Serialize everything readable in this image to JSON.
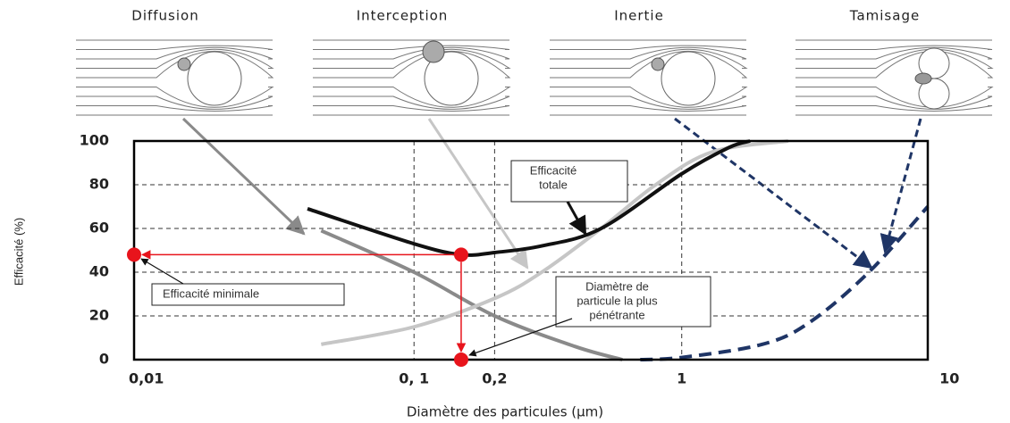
{
  "mechanisms": [
    "Diffusion",
    "Interception",
    "Inertie",
    "Tamisage"
  ],
  "chart_data": {
    "type": "line",
    "xscale": "log",
    "xlabel": "Diamètre des particules (µm)",
    "ylabel": "Efficacité (%)",
    "xlim": [
      0.009,
      8.3
    ],
    "ylim": [
      0,
      100
    ],
    "xticks": [
      {
        "value": 0.01,
        "label": "0,01"
      },
      {
        "value": 0.1,
        "label": "0, 1"
      },
      {
        "value": 0.2,
        "label": "0,2"
      },
      1,
      10
    ],
    "yticks": [
      0,
      20,
      40,
      60,
      80,
      100
    ],
    "grid": true,
    "series": [
      {
        "color": "#8a8a8a",
        "dashed": false,
        "x": [
          0.045,
          0.1,
          0.2,
          0.4,
          0.6
        ],
        "values": [
          59,
          40,
          20,
          6,
          0
        ]
      },
      {
        "color": "#c6c6c6",
        "dashed": false,
        "x": [
          0.045,
          0.1,
          0.2,
          0.3,
          0.5,
          0.8,
          1.3,
          2.5
        ],
        "values": [
          7,
          15,
          28,
          40,
          60,
          80,
          95,
          100
        ]
      },
      {
        "color": "#111111",
        "dashed": false,
        "x": [
          0.04,
          0.1,
          0.15,
          0.2,
          0.3,
          0.5,
          1,
          1.5,
          1.8
        ],
        "values": [
          69,
          53,
          48,
          49,
          52,
          60,
          85,
          97,
          100
        ]
      },
      {
        "color": "#1f3566",
        "dashed": true,
        "x": [
          0.7,
          1,
          2,
          3,
          5,
          8.3
        ],
        "values": [
          0,
          1,
          7,
          17,
          40,
          70
        ]
      }
    ],
    "markers": {
      "color": "#e8141c",
      "x": [
        0.009,
        0.15,
        0.15
      ],
      "values": [
        48,
        48,
        0
      ]
    },
    "annotations": [
      [
        "Efficacité",
        "totale"
      ],
      [
        "Efficacité minimale"
      ],
      [
        "Diamètre de",
        "particule la plus",
        "pénétrante"
      ]
    ]
  }
}
